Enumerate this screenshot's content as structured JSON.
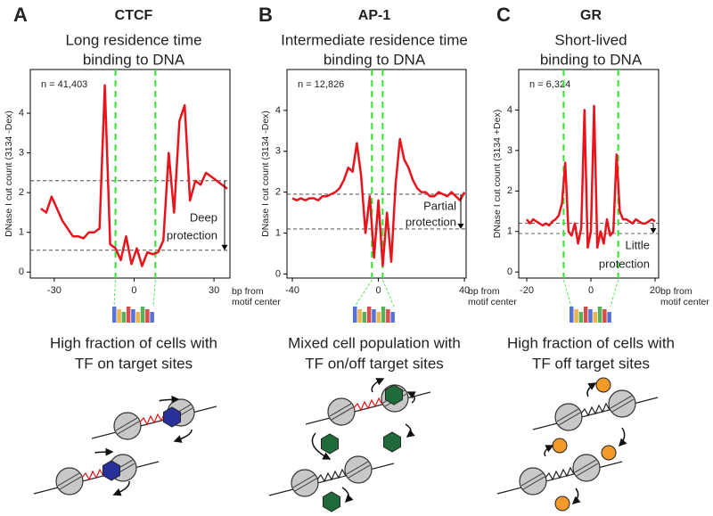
{
  "chart_data": [
    {
      "type": "line",
      "panel": "A",
      "title": "CTCF",
      "subtitle": [
        "Long residence time",
        "binding to DNA"
      ],
      "n_label": "n = 41,403",
      "ylabel": "DNase I cut count (3134 -Dex)",
      "xlabel": [
        "bp from",
        "motif center"
      ],
      "x": [
        -35,
        -33,
        -31,
        -29,
        -27,
        -25,
        -23,
        -21,
        -19,
        -17,
        -15,
        -13,
        -11,
        -9,
        -7,
        -5,
        -3,
        -1,
        1,
        3,
        5,
        7,
        9,
        11,
        13,
        15,
        17,
        19,
        21,
        23,
        25,
        27,
        29,
        31,
        33,
        35
      ],
      "values": [
        1.6,
        1.5,
        1.9,
        1.6,
        1.3,
        1.1,
        0.9,
        0.9,
        0.85,
        1.0,
        1.0,
        1.1,
        4.7,
        0.7,
        0.6,
        0.3,
        0.9,
        0.2,
        0.6,
        0.15,
        0.5,
        0.45,
        0.5,
        0.8,
        3.0,
        1.5,
        3.8,
        4.2,
        1.8,
        2.3,
        2.2,
        2.5,
        2.4,
        2.3,
        2.2,
        2.1
      ],
      "color": "#e8141b",
      "xlim": [
        -39,
        36
      ],
      "ylim": [
        -0.15,
        5.1
      ],
      "xticks": [
        -30,
        0,
        30
      ],
      "yticks": [
        0,
        1,
        2,
        3,
        4
      ],
      "reference_lines": [
        2.3,
        0.55
      ],
      "motif_edges": [
        -7,
        8
      ],
      "annotation": [
        "Deep",
        "protection"
      ],
      "caption": [
        "High fraction of cells with",
        "TF on target sites"
      ]
    },
    {
      "type": "line",
      "panel": "B",
      "title": "AP-1",
      "subtitle": [
        "Intermediate residence time",
        "binding to DNA"
      ],
      "n_label": "n = 12,826",
      "ylabel": "DNase I cut count (3134 -Dex)",
      "xlabel": [
        "bp from",
        "motif center"
      ],
      "x": [
        -40,
        -38,
        -36,
        -34,
        -32,
        -30,
        -28,
        -26,
        -24,
        -22,
        -20,
        -18,
        -16,
        -14,
        -12,
        -10,
        -8,
        -6,
        -4,
        -2,
        0,
        2,
        4,
        6,
        8,
        10,
        12,
        14,
        16,
        18,
        20,
        22,
        24,
        26,
        28,
        30,
        32,
        34,
        36,
        38,
        40
      ],
      "values": [
        1.85,
        1.8,
        1.85,
        1.8,
        1.85,
        1.85,
        1.8,
        1.9,
        1.9,
        1.95,
        2.0,
        2.1,
        2.3,
        2.6,
        2.5,
        3.2,
        2.4,
        1.0,
        1.9,
        0.4,
        1.8,
        0.2,
        1.5,
        0.3,
        2.2,
        3.3,
        2.8,
        2.6,
        2.3,
        2.1,
        2.0,
        2.0,
        1.9,
        1.9,
        2.0,
        1.95,
        1.9,
        2.0,
        1.9,
        1.8,
        2.0
      ],
      "color": "#e8141b",
      "xlim": [
        -42.5,
        40.8
      ],
      "ylim": [
        -0.1,
        5.0
      ],
      "xticks": [
        -40,
        0,
        40
      ],
      "yticks": [
        0,
        1,
        2,
        3,
        4
      ],
      "reference_lines": [
        1.95,
        1.1
      ],
      "motif_edges": [
        -3,
        2
      ],
      "annotation": [
        "Partial",
        "protection"
      ],
      "caption": [
        "Mixed cell population with",
        "TF on/off target sites"
      ]
    },
    {
      "type": "line",
      "panel": "C",
      "title": "GR",
      "subtitle": [
        "Short-lived",
        "binding to DNA"
      ],
      "n_label": "n = 6,324",
      "ylabel": "DNase I cut count (3134 +Dex)",
      "xlabel": [
        "bp from",
        "motif center"
      ],
      "x": [
        -20,
        -19,
        -18,
        -17,
        -16,
        -15,
        -14,
        -13,
        -12,
        -11,
        -10,
        -9,
        -8,
        -7,
        -6,
        -5,
        -4,
        -3,
        -2,
        -1,
        0,
        1,
        2,
        3,
        4,
        5,
        6,
        7,
        8,
        9,
        10,
        11,
        12,
        13,
        14,
        15,
        16,
        17,
        18,
        19,
        20
      ],
      "values": [
        1.3,
        1.2,
        1.3,
        1.25,
        1.2,
        1.15,
        1.2,
        1.15,
        1.25,
        1.3,
        1.4,
        1.7,
        2.7,
        1.0,
        0.9,
        1.2,
        0.7,
        1.1,
        4.0,
        0.6,
        1.0,
        4.1,
        0.6,
        1.0,
        0.7,
        1.3,
        0.9,
        1.0,
        2.9,
        1.5,
        1.3,
        1.3,
        1.25,
        1.2,
        1.3,
        1.25,
        1.2,
        1.2,
        1.25,
        1.3,
        1.25
      ],
      "color": "#e8141b",
      "xlim": [
        -22.5,
        21.1
      ],
      "ylim": [
        -0.15,
        5.0
      ],
      "xticks": [
        -20,
        0,
        20
      ],
      "yticks": [
        0,
        1,
        2,
        3,
        4
      ],
      "reference_lines": [
        1.2,
        0.95
      ],
      "motif_edges": [
        -8.5,
        8.5
      ],
      "annotation": [
        "Little",
        "protection"
      ],
      "caption": [
        "High fraction of cells with",
        "TF off target sites"
      ]
    }
  ]
}
